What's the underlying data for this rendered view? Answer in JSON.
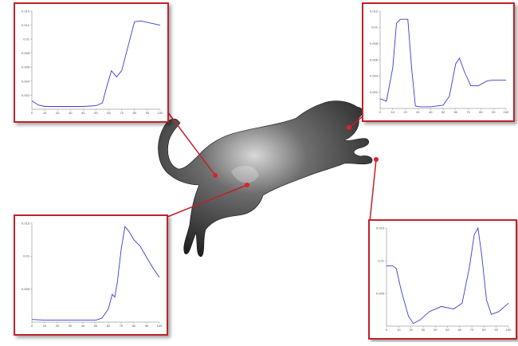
{
  "chart_data": [
    {
      "type": "line",
      "color": "#3b3bd0",
      "x": [
        0,
        5,
        10,
        20,
        30,
        40,
        50,
        55,
        58,
        62,
        66,
        70,
        75,
        80,
        85,
        90,
        95,
        100
      ],
      "values": [
        0.0012,
        0.0006,
        0.0004,
        0.0004,
        0.0004,
        0.0004,
        0.0005,
        0.0009,
        0.003,
        0.0055,
        0.0046,
        0.0055,
        0.009,
        0.0125,
        0.0126,
        0.0124,
        0.0122,
        0.012
      ],
      "xlim": [
        0,
        100
      ],
      "ylim": [
        0,
        0.014
      ],
      "xticks": [
        0,
        10,
        20,
        30,
        40,
        50,
        60,
        70,
        80,
        90,
        100
      ],
      "yticks": [
        0.002,
        0.004,
        0.006,
        0.008,
        0.01,
        0.012,
        0.014
      ]
    },
    {
      "type": "line",
      "color": "#3b3bd0",
      "x": [
        0,
        5,
        10,
        13,
        16,
        22,
        25,
        28,
        32,
        40,
        50,
        55,
        60,
        63,
        67,
        72,
        78,
        85,
        90,
        100
      ],
      "values": [
        0.0012,
        0.0009,
        0.005,
        0.0105,
        0.011,
        0.011,
        0.005,
        0.0003,
        0.0002,
        0.0002,
        0.0004,
        0.0015,
        0.0055,
        0.0062,
        0.0045,
        0.0028,
        0.0028,
        0.0034,
        0.0035,
        0.0035
      ],
      "xlim": [
        0,
        100
      ],
      "ylim": [
        0,
        0.012
      ],
      "xticks": [
        0,
        10,
        20,
        30,
        40,
        50,
        60,
        70,
        80,
        90,
        100
      ],
      "yticks": [
        0.002,
        0.004,
        0.006,
        0.008,
        0.01,
        0.012
      ]
    },
    {
      "type": "line",
      "color": "#3b3bd0",
      "x": [
        0,
        10,
        20,
        30,
        40,
        50,
        55,
        60,
        63,
        65,
        67,
        70,
        73,
        76,
        80,
        85,
        90,
        95,
        100
      ],
      "values": [
        0.0004,
        0.0003,
        0.0003,
        0.0003,
        0.0003,
        0.0003,
        0.0006,
        0.002,
        0.0042,
        0.0038,
        0.006,
        0.011,
        0.0145,
        0.0138,
        0.0125,
        0.0115,
        0.0098,
        0.0082,
        0.0068
      ],
      "xlim": [
        0,
        100
      ],
      "ylim": [
        0,
        0.015
      ],
      "xticks": [
        0,
        10,
        20,
        30,
        40,
        50,
        60,
        70,
        80,
        90,
        100
      ],
      "yticks": [
        0.005,
        0.01,
        0.015
      ]
    },
    {
      "type": "line",
      "color": "#3b3bd0",
      "x": [
        0,
        5,
        8,
        12,
        18,
        22,
        28,
        35,
        45,
        55,
        62,
        68,
        72,
        75,
        78,
        82,
        86,
        92,
        100
      ],
      "values": [
        0.0092,
        0.0092,
        0.0088,
        0.0055,
        0.0015,
        0.0004,
        0.001,
        0.0022,
        0.003,
        0.0026,
        0.0035,
        0.009,
        0.014,
        0.015,
        0.011,
        0.004,
        0.0018,
        0.0022,
        0.0035
      ],
      "xlim": [
        0,
        100
      ],
      "ylim": [
        0,
        0.015
      ],
      "xticks": [
        0,
        10,
        20,
        30,
        40,
        50,
        60,
        70,
        80,
        90,
        100
      ],
      "yticks": [
        0.005,
        0.01,
        0.015
      ]
    }
  ]
}
